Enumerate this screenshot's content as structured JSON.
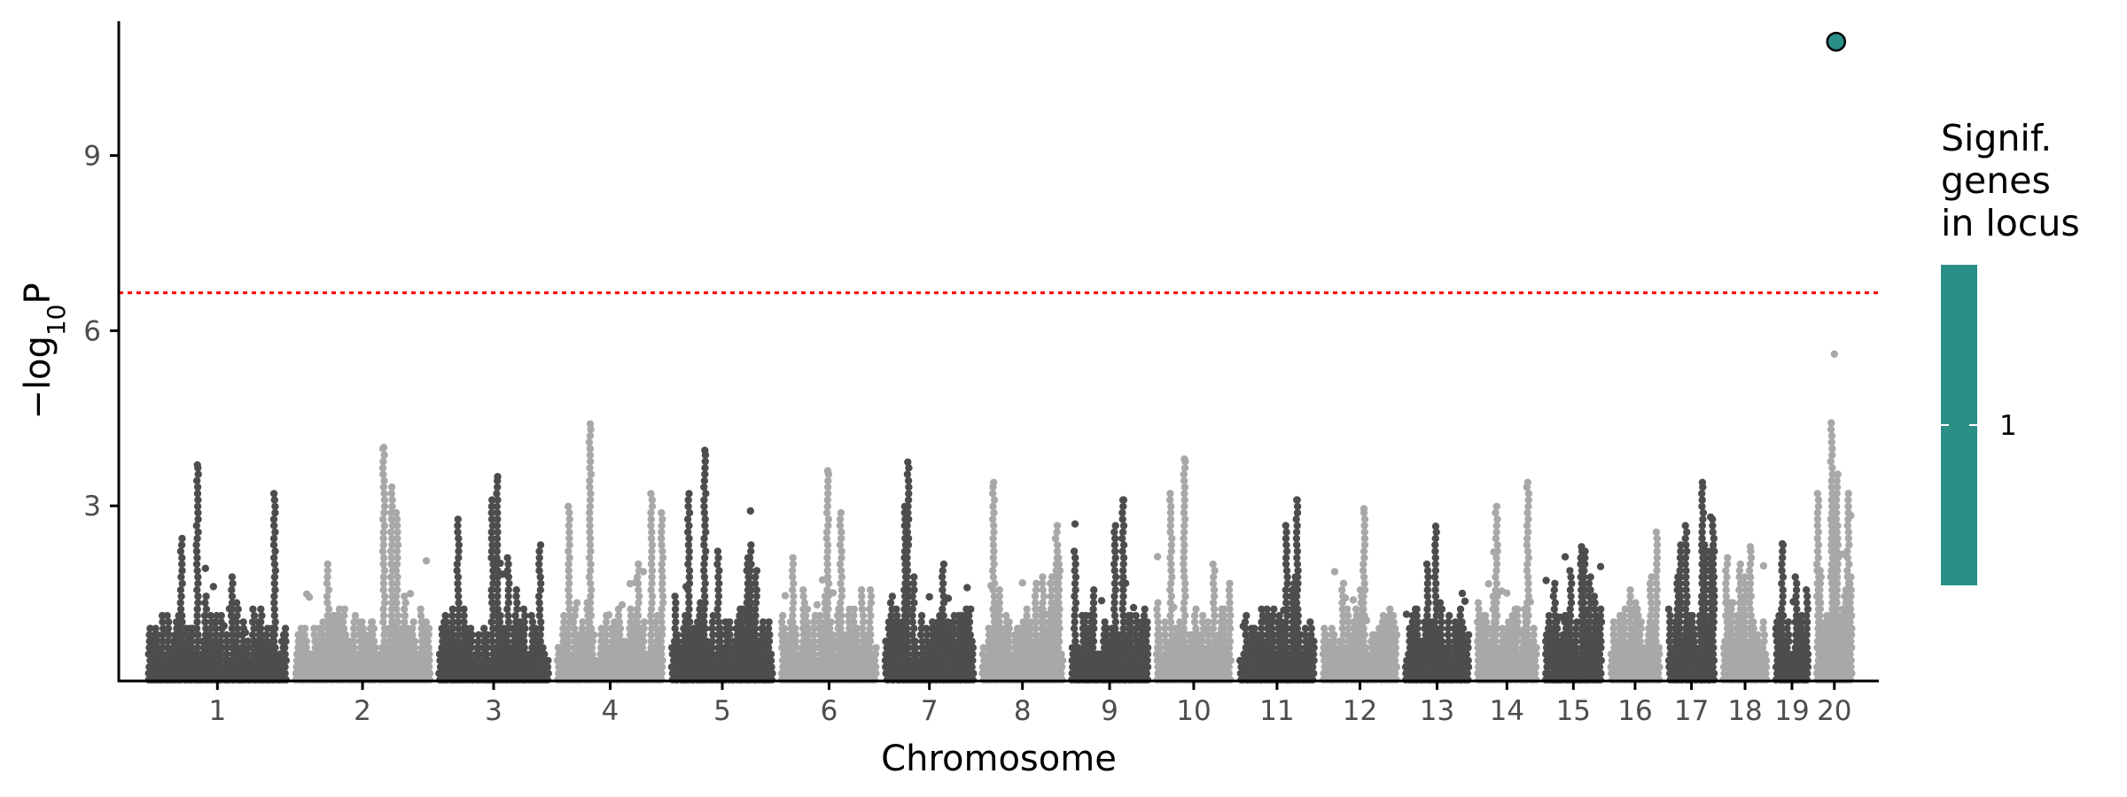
{
  "chart_data": {
    "type": "scatter",
    "subtype": "manhattan",
    "title": "",
    "xlabel": "Chromosome",
    "ylabel": {
      "prefix": "−log",
      "subscript": "10",
      "suffix": "P"
    },
    "ylim": [
      0,
      11.3
    ],
    "yticks": [
      3,
      6,
      9
    ],
    "grid": false,
    "threshold_line": {
      "y": 6.65,
      "color": "#ff0000",
      "style": "dotted"
    },
    "colors": {
      "dark": "#4d4d4d",
      "light": "#a8a8a8",
      "highlight": "#2a9087",
      "highlight_stroke": "#000000"
    },
    "chromosomes": [
      {
        "label": "1",
        "length": 248,
        "peak": 3.7
      },
      {
        "label": "2",
        "length": 242,
        "peak": 4.0
      },
      {
        "label": "3",
        "length": 198,
        "peak": 3.5
      },
      {
        "label": "4",
        "length": 190,
        "peak": 4.4
      },
      {
        "label": "5",
        "length": 182,
        "peak": 3.95
      },
      {
        "label": "6",
        "length": 171,
        "peak": 3.6
      },
      {
        "label": "7",
        "length": 159,
        "peak": 3.75
      },
      {
        "label": "8",
        "length": 145,
        "peak": 3.4
      },
      {
        "label": "9",
        "length": 138,
        "peak": 3.1
      },
      {
        "label": "10",
        "length": 134,
        "peak": 3.8
      },
      {
        "label": "11",
        "length": 135,
        "peak": 3.1
      },
      {
        "label": "12",
        "length": 133,
        "peak": 2.95
      },
      {
        "label": "13",
        "length": 114,
        "peak": 2.65
      },
      {
        "label": "14",
        "length": 107,
        "peak": 3.4
      },
      {
        "label": "15",
        "length": 102,
        "peak": 2.3
      },
      {
        "label": "16",
        "length": 90,
        "peak": 2.55
      },
      {
        "label": "17",
        "length": 83,
        "peak": 3.4
      },
      {
        "label": "18",
        "length": 80,
        "peak": 2.3
      },
      {
        "label": "19",
        "length": 59,
        "peak": 2.35
      },
      {
        "label": "20",
        "length": 64,
        "peak": 5.6
      }
    ],
    "significant_points": [
      {
        "chromosome": "20",
        "position_frac": 0.55,
        "value": 10.95,
        "signif_genes_in_locus": 1
      }
    ],
    "legend": {
      "title": [
        "Signif.",
        "genes",
        "in locus"
      ],
      "labels": [
        "1"
      ],
      "placement": "right",
      "color": "#2a9087"
    }
  }
}
